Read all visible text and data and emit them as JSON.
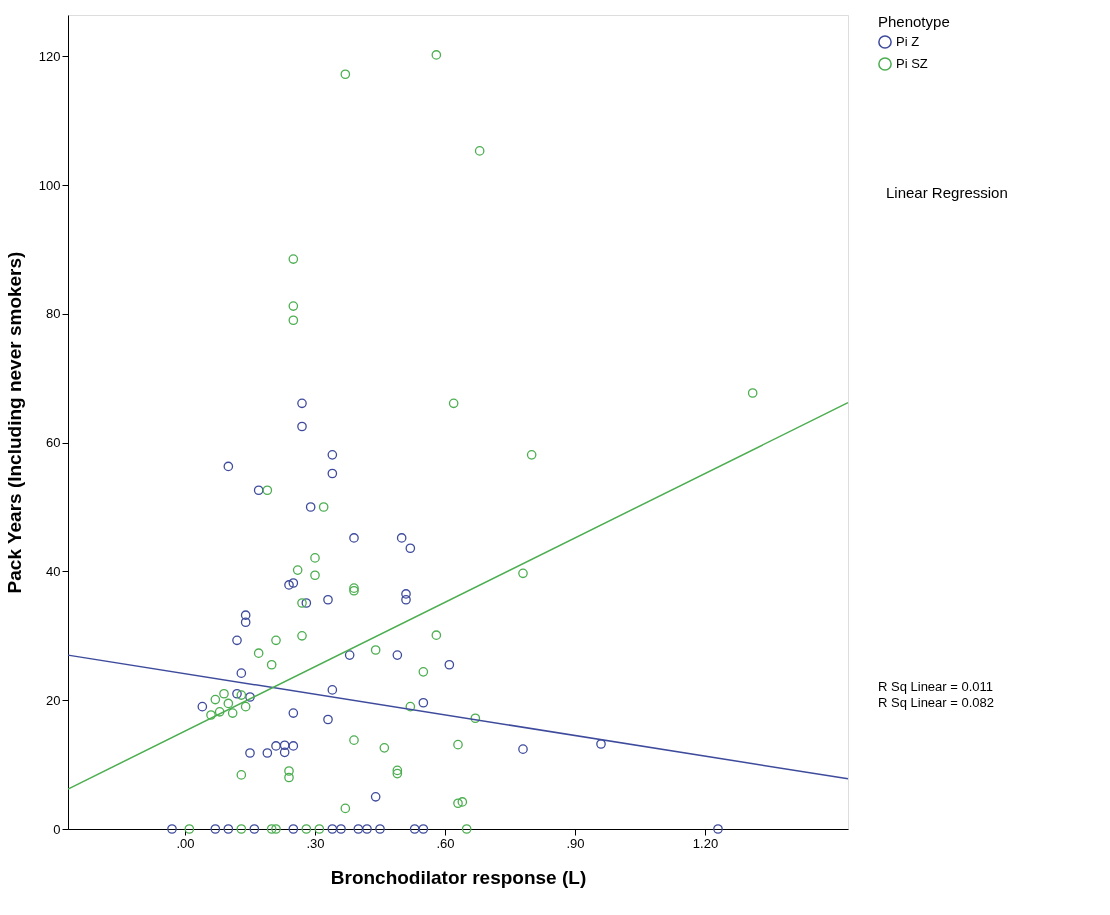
{
  "chart_data": {
    "type": "scatter",
    "xlabel": "Bronchodilator response (L)",
    "ylabel": "Pack Years (Including never smokers)",
    "legend_title": "Phenotype",
    "legend": "top right",
    "marker": "circle",
    "grid": false,
    "xlim": [
      -0.27,
      1.53
    ],
    "ylim": [
      0,
      126.4
    ],
    "xticks": [
      {
        "value": 0,
        "label": ".00"
      },
      {
        "value": 0.3,
        "label": ".30"
      },
      {
        "value": 0.6,
        "label": ".60"
      },
      {
        "value": 0.9,
        "label": ".90"
      },
      {
        "value": 1.2,
        "label": "1.20"
      }
    ],
    "yticks": [
      0,
      20,
      40,
      60,
      80,
      100,
      120
    ],
    "annotations": [
      "Linear Regression",
      "R Sq Linear = 0.011",
      "R Sq Linear = 0.082"
    ],
    "series": [
      {
        "name": "Pi Z",
        "color": "#3e4b9c",
        "x": [
          0.1,
          0.27,
          0.27,
          0.34,
          0.34,
          0.17,
          0.29,
          0.39,
          0.5,
          0.52,
          0.24,
          0.25,
          0.28,
          0.33,
          0.14,
          0.14,
          0.12,
          0.51,
          0.51,
          0.49,
          0.38,
          0.61,
          0.13,
          0.04,
          0.25,
          0.34,
          0.33,
          0.55,
          0.12,
          0.15,
          0.78,
          0.96,
          0.15,
          0.19,
          0.21,
          0.23,
          0.25,
          0.23,
          0.44,
          0.42,
          0.45,
          0.53,
          0.55,
          1.23,
          -0.03,
          0.07,
          0.1,
          0.16,
          0.25,
          0.34,
          0.36,
          0.4
        ],
        "values": [
          56.3,
          66.1,
          62.5,
          58.1,
          55.2,
          52.6,
          50.0,
          45.2,
          45.2,
          43.6,
          37.9,
          38.2,
          35.1,
          35.6,
          33.2,
          32.1,
          29.3,
          36.5,
          35.6,
          27.0,
          27.0,
          25.5,
          24.2,
          19.0,
          18.0,
          21.6,
          17.0,
          19.6,
          21.0,
          20.5,
          12.4,
          13.2,
          11.8,
          11.8,
          12.9,
          13.0,
          12.9,
          11.9,
          5.0,
          0,
          0,
          0,
          0,
          0,
          0,
          0,
          0,
          0,
          0,
          0,
          0,
          0
        ]
      },
      {
        "name": "Pi SZ",
        "color": "#4cae50",
        "x": [
          0.37,
          0.58,
          0.68,
          0.25,
          0.25,
          0.25,
          0.62,
          0.8,
          1.31,
          0.19,
          0.32,
          0.3,
          0.26,
          0.3,
          0.39,
          0.39,
          0.27,
          0.78,
          0.58,
          0.27,
          0.21,
          0.17,
          0.44,
          0.2,
          0.55,
          0.52,
          0.67,
          0.06,
          0.07,
          0.09,
          0.1,
          0.08,
          0.11,
          0.14,
          0.13,
          0.46,
          0.63,
          0.39,
          0.13,
          0.24,
          0.24,
          0.49,
          0.49,
          0.63,
          0.64,
          0.37,
          0.01,
          0.13,
          0.2,
          0.21,
          0.28,
          0.31,
          0.65
        ],
        "values": [
          117.2,
          120.2,
          105.3,
          88.5,
          81.2,
          79.0,
          66.1,
          58.1,
          67.7,
          52.6,
          50.0,
          42.1,
          40.2,
          39.4,
          37.4,
          37.0,
          35.1,
          39.7,
          30.1,
          30.0,
          29.3,
          27.3,
          27.8,
          25.5,
          24.4,
          19.0,
          17.2,
          17.7,
          20.1,
          21.0,
          19.5,
          18.2,
          18.0,
          19.0,
          20.8,
          12.6,
          13.1,
          13.8,
          8.4,
          8.0,
          9.0,
          8.6,
          9.1,
          4.0,
          4.2,
          3.2,
          0,
          0,
          0,
          0,
          0,
          0,
          0
        ]
      },
      {
        "type": "line",
        "marker": "none",
        "color": "#3e4b9c",
        "x": [
          -0.27,
          1.53
        ],
        "values": [
          27.0,
          7.8
        ]
      },
      {
        "type": "line",
        "marker": "none",
        "color": "#4cae50",
        "x": [
          -0.27,
          1.53
        ],
        "values": [
          6.2,
          66.2
        ]
      }
    ]
  }
}
